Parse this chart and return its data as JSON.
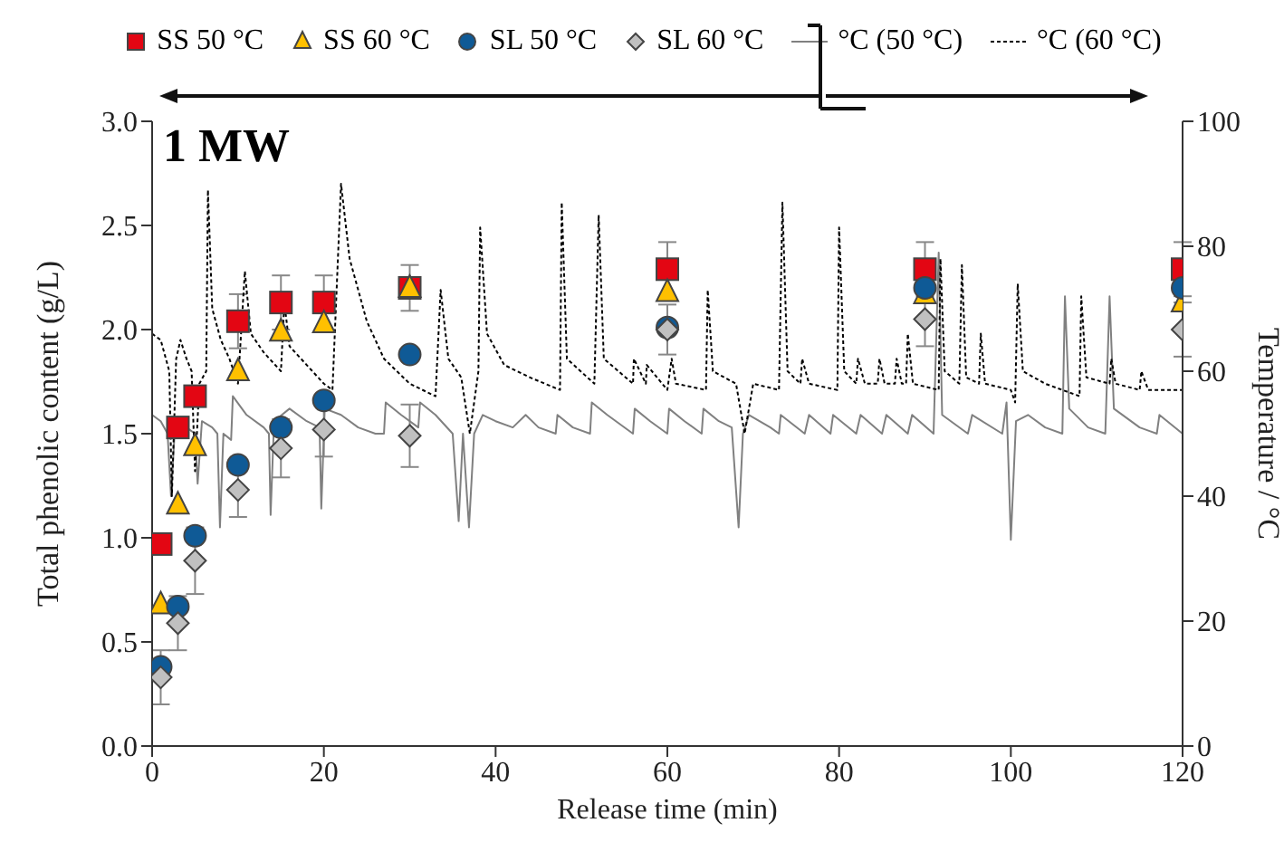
{
  "chart_data": {
    "type": "scatter",
    "xlabel": "Release time (min)",
    "ylabel": "Total phenolic content  (g/L)",
    "y2label": "Temperature / °C",
    "annotations": [
      "1 MW"
    ],
    "x": [
      1,
      3,
      5,
      10,
      15,
      20,
      30,
      60,
      90,
      120
    ],
    "xlim": [
      0,
      120
    ],
    "xticks": [
      0,
      20,
      40,
      60,
      80,
      100,
      120
    ],
    "ylim": [
      0,
      3
    ],
    "yticks": [
      {
        "value": 0,
        "label": "0.0"
      },
      0.5,
      {
        "value": 1,
        "label": "1.0"
      },
      1.5,
      {
        "value": 2,
        "label": "2.0"
      },
      2.5,
      {
        "value": 3,
        "label": "3.0"
      }
    ],
    "y2lim": [
      0,
      100
    ],
    "y2ticks": [
      0,
      20,
      40,
      60,
      80,
      100
    ],
    "legend": "top",
    "grid": false,
    "series": [
      {
        "name": "SS 50 °C",
        "color": "#e30613",
        "marker": "square",
        "values": [
          0.97,
          1.53,
          1.68,
          2.04,
          2.13,
          2.13,
          2.2,
          2.29,
          2.29,
          2.29
        ],
        "errors": [
          null,
          null,
          null,
          0.13,
          0.13,
          0.13,
          0.11,
          0.13,
          0.13,
          0.13
        ]
      },
      {
        "name": "SS 60 °C",
        "color": "#ffc000",
        "marker": "triangle",
        "values": [
          0.68,
          1.16,
          1.44,
          1.8,
          1.99,
          2.03,
          2.2,
          2.18,
          2.17,
          2.13
        ]
      },
      {
        "name": "SL 50 °C",
        "color": "#0f5a96",
        "marker": "circle",
        "values": [
          0.38,
          0.67,
          1.01,
          1.35,
          1.53,
          1.66,
          1.88,
          2.01,
          2.2,
          2.2
        ]
      },
      {
        "name": "SL 60 °C",
        "color": "#c0c0c0",
        "marker": "diamond",
        "values": [
          0.33,
          0.59,
          0.89,
          1.23,
          1.43,
          1.52,
          1.49,
          2.0,
          2.05,
          2.0
        ],
        "errors": [
          0.13,
          0.13,
          0.16,
          0.13,
          0.14,
          0.13,
          0.15,
          0.12,
          0.13,
          0.13
        ]
      },
      {
        "name": "°C (50 °C)",
        "type": "line",
        "axis": "y2",
        "color": "#808080",
        "line_style": "solid",
        "marker": "none",
        "x": [
          0,
          1,
          1.8,
          2.2,
          2.7,
          4,
          5,
          5.3,
          5.8,
          7,
          7.6,
          7.9,
          8.3,
          9.2,
          9.4,
          11,
          13,
          13.6,
          13.8,
          14.2,
          16,
          18,
          19.5,
          19.7,
          20.1,
          22,
          24,
          26,
          27,
          27.2,
          29,
          31,
          31.2,
          33,
          35,
          35.7,
          36.2,
          36.9,
          37.5,
          38.5,
          40,
          42,
          43.5,
          45,
          47,
          47.2,
          49,
          51,
          51.2,
          53,
          56,
          56.2,
          58,
          60,
          60.2,
          62,
          64,
          64.2,
          66,
          67.5,
          68.3,
          68.8,
          69.5,
          72,
          73,
          73.2,
          76,
          76.5,
          79,
          79.3,
          82,
          82.5,
          85,
          85.5,
          88,
          88.5,
          91,
          91.6,
          92,
          95,
          95.5,
          99,
          99.5,
          100,
          100.6,
          102,
          104,
          106,
          106.3,
          106.8,
          109,
          111,
          111.5,
          112,
          115,
          117,
          117.3,
          120
        ],
        "values": [
          53,
          52,
          50,
          40,
          52,
          51,
          50,
          42,
          52,
          51,
          50,
          35,
          50,
          49,
          56,
          53,
          51,
          50,
          37,
          52,
          54,
          52,
          51,
          38,
          54,
          53,
          51,
          50,
          50,
          55,
          53,
          51,
          55,
          53,
          50,
          36,
          50,
          35,
          50,
          53,
          52,
          51,
          53,
          51,
          50,
          53,
          51,
          50,
          55,
          53,
          50,
          54,
          52,
          50,
          54,
          52,
          50,
          54,
          52,
          51,
          35,
          50,
          53,
          51,
          50,
          53,
          50,
          53,
          50,
          53,
          50,
          53,
          50,
          53,
          50,
          53,
          50,
          79,
          53,
          50,
          53,
          50,
          55,
          33,
          52,
          53,
          51,
          50,
          72,
          54,
          51,
          50,
          72,
          54,
          51,
          50,
          53,
          50
        ]
      },
      {
        "name": "°C (60 °C)",
        "type": "line",
        "axis": "y2",
        "color": "#000000",
        "line_style": "dashed",
        "marker": "none",
        "x": [
          0,
          1,
          2,
          2.3,
          2.8,
          3.3,
          4,
          4.6,
          5,
          5.5,
          6.3,
          6.5,
          7,
          8,
          9,
          10,
          10.8,
          11.5,
          13,
          15,
          15.4,
          16,
          18,
          20,
          21,
          22,
          23,
          25,
          27,
          30,
          33,
          33.6,
          34.5,
          36,
          37,
          38,
          38.2,
          39,
          41,
          44,
          47.5,
          47.7,
          48.3,
          51.5,
          52,
          52.6,
          56,
          56.1,
          57.5,
          57.6,
          60,
          60.5,
          61,
          64.5,
          64.7,
          65.3,
          68,
          69,
          70,
          73,
          73.4,
          74,
          75.5,
          75.7,
          76.5,
          79.8,
          80,
          80.6,
          82,
          82.2,
          83,
          84.5,
          84.7,
          85.3,
          86.5,
          86.7,
          87.3,
          87.8,
          88,
          88.6,
          91.6,
          91.8,
          92.3,
          94,
          94.3,
          94.8,
          96.3,
          96.5,
          97,
          100,
          100.5,
          100.8,
          101.4,
          104,
          106,
          108,
          108.2,
          108.8,
          111.5,
          111.7,
          112.2,
          115,
          115.2,
          116,
          120
        ],
        "values": [
          66,
          65,
          60,
          40,
          62,
          65,
          62,
          60,
          44,
          58,
          60,
          89,
          70,
          65,
          62,
          58,
          76,
          66,
          63,
          60,
          71,
          64,
          61,
          58,
          57,
          90,
          78,
          68,
          62,
          58,
          56,
          73,
          62,
          59,
          50,
          60,
          83,
          66,
          61,
          59,
          57,
          87,
          62,
          58,
          85,
          62,
          58,
          62,
          58,
          61,
          57,
          62,
          58,
          57,
          73,
          60,
          58,
          50,
          58,
          57,
          87,
          60,
          58,
          62,
          58,
          57,
          83,
          60,
          58,
          62,
          58,
          58,
          62,
          58,
          58,
          62,
          58,
          58,
          66,
          58,
          57,
          78,
          60,
          58,
          77,
          59,
          58,
          66,
          58,
          57,
          55,
          74,
          60,
          58,
          57,
          56,
          72,
          59,
          58,
          62,
          58,
          57,
          60,
          57,
          57
        ]
      }
    ]
  }
}
